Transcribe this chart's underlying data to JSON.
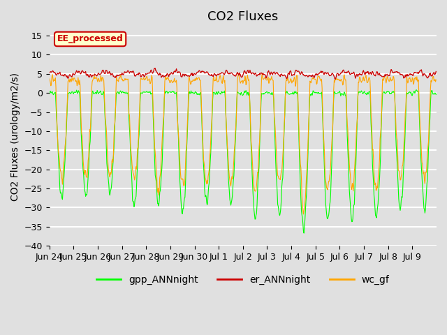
{
  "title": "CO2 Fluxes",
  "ylabel": "CO2 Fluxes (urology/m2/s)",
  "ylim": [
    -40,
    17
  ],
  "yticks": [
    -40,
    -35,
    -30,
    -25,
    -20,
    -15,
    -10,
    -5,
    0,
    5,
    10,
    15
  ],
  "xtick_positions": [
    0,
    1,
    2,
    3,
    4,
    5,
    6,
    7,
    8,
    9,
    10,
    11,
    12,
    13,
    14,
    15
  ],
  "xtick_labels": [
    "Jun 24",
    "Jun 25",
    "Jun 26",
    "Jun 27",
    "Jun 28",
    "Jun 29",
    "Jun 30",
    "Jul 1",
    "Jul 2",
    "Jul 3",
    "Jul 4",
    "Jul 5",
    "Jul 6",
    "Jul 7",
    "Jul 8",
    "Jul 9"
  ],
  "bg_color": "#e0e0e0",
  "plot_bg_color": "#e0e0e0",
  "grid_color": "white",
  "gpp_color": "#00ff00",
  "er_color": "#cc0000",
  "wc_color": "#ffa500",
  "legend_label": "EE_processed",
  "legend_facecolor": "#ffffcc",
  "legend_edgecolor": "#cc0000",
  "title_fontsize": 13,
  "label_fontsize": 10,
  "tick_fontsize": 9,
  "n_points": 768,
  "n_days": 16,
  "seed": 42
}
